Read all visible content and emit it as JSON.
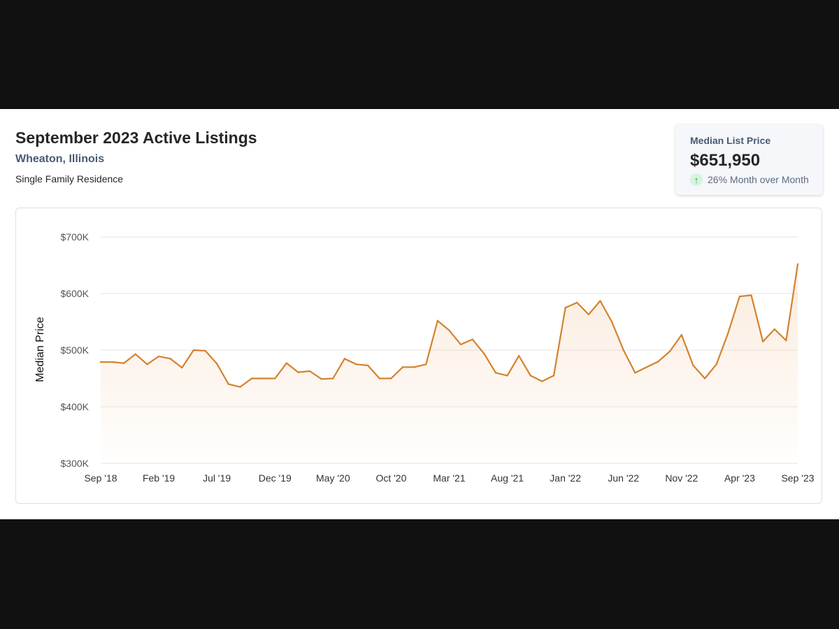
{
  "header": {
    "title": "September 2023 Active Listings",
    "location": "Wheaton, Illinois",
    "property_type": "Single Family Residence"
  },
  "stat": {
    "label": "Median List Price",
    "value": "$651,950",
    "change": "26% Month over Month",
    "icon": "up-arrow-icon",
    "change_icon_color": "#1e9a3e"
  },
  "colors": {
    "line": "#d4822e",
    "fill_top": "#f6d3b3",
    "grid": "#e3e3e3"
  },
  "chart_data": {
    "type": "area",
    "title": "",
    "xlabel": "",
    "ylabel": "Median Price",
    "ylim": [
      300000,
      700000
    ],
    "yticks": [
      300000,
      400000,
      500000,
      600000,
      700000
    ],
    "ytick_labels": [
      "$300K",
      "$400K",
      "$500K",
      "$600K",
      "$700K"
    ],
    "xtick_labels": [
      "Sep '18",
      "Feb '19",
      "Jul '19",
      "Dec '19",
      "May '20",
      "Oct '20",
      "Mar '21",
      "Aug '21",
      "Jan '22",
      "Jun '22",
      "Nov '22",
      "Apr '23",
      "Sep '23"
    ],
    "grid": true,
    "x": [
      "2018-09",
      "2018-10",
      "2018-11",
      "2018-12",
      "2019-01",
      "2019-02",
      "2019-03",
      "2019-04",
      "2019-05",
      "2019-06",
      "2019-07",
      "2019-08",
      "2019-09",
      "2019-10",
      "2019-11",
      "2019-12",
      "2020-01",
      "2020-02",
      "2020-03",
      "2020-04",
      "2020-05",
      "2020-06",
      "2020-07",
      "2020-08",
      "2020-09",
      "2020-10",
      "2020-11",
      "2020-12",
      "2021-01",
      "2021-02",
      "2021-03",
      "2021-04",
      "2021-05",
      "2021-06",
      "2021-07",
      "2021-08",
      "2021-09",
      "2021-10",
      "2021-11",
      "2021-12",
      "2022-01",
      "2022-02",
      "2022-03",
      "2022-04",
      "2022-05",
      "2022-06",
      "2022-07",
      "2022-08",
      "2022-09",
      "2022-10",
      "2022-11",
      "2022-12",
      "2023-01",
      "2023-02",
      "2023-03",
      "2023-04",
      "2023-05",
      "2023-06",
      "2023-07",
      "2023-08",
      "2023-09"
    ],
    "series": [
      {
        "values": [
          479000,
          479000,
          477000,
          493000,
          475000,
          489000,
          485000,
          469000,
          500000,
          499000,
          476000,
          440000,
          435000,
          450000,
          450000,
          450000,
          477000,
          461000,
          463000,
          449000,
          450000,
          485000,
          475000,
          473000,
          450000,
          450000,
          470000,
          470000,
          475000,
          552000,
          535000,
          510000,
          519000,
          494000,
          460000,
          455000,
          490000,
          455000,
          445000,
          455000,
          575000,
          584000,
          563000,
          587000,
          550000,
          500000,
          460000,
          470000,
          480000,
          498000,
          527000,
          473000,
          450000,
          475000,
          530000,
          595000,
          597000,
          515000,
          537000,
          517000,
          651950
        ]
      }
    ]
  }
}
